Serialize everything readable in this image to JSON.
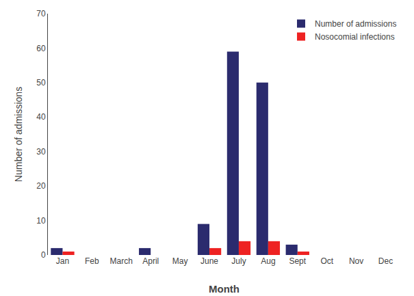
{
  "chart_data": {
    "type": "bar",
    "categories": [
      "Jan",
      "Feb",
      "March",
      "April",
      "May",
      "June",
      "July",
      "Aug",
      "Sept",
      "Oct",
      "Nov",
      "Dec"
    ],
    "series": [
      {
        "name": "Number of admissions",
        "color": "#2B2B6E",
        "values": [
          2,
          0,
          0,
          2,
          0,
          9,
          59,
          50,
          3,
          0,
          0,
          0
        ]
      },
      {
        "name": "Nosocomial infections",
        "color": "#EE2222",
        "values": [
          1,
          0,
          0,
          0,
          0,
          2,
          4,
          4,
          1,
          0,
          0,
          0
        ]
      }
    ],
    "xlabel": "Month",
    "ylabel": "Number of admissions",
    "ylim": [
      0,
      70
    ],
    "yticks": [
      0,
      10,
      20,
      30,
      40,
      50,
      60,
      70
    ],
    "grid": false,
    "legend": "upper right"
  }
}
